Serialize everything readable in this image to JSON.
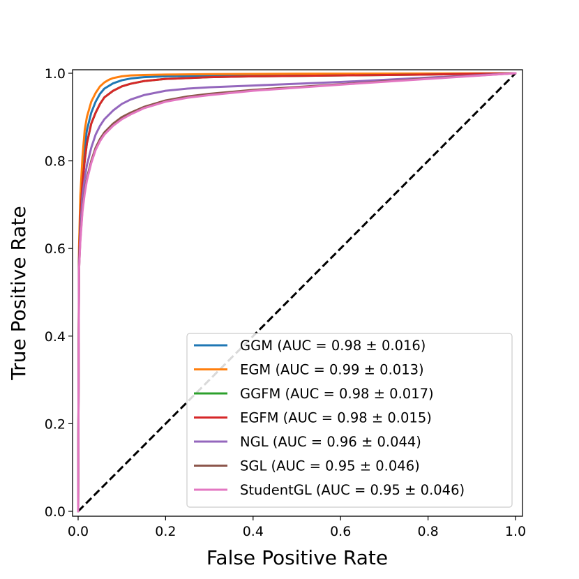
{
  "chart_data": {
    "type": "line",
    "title": "",
    "xlabel": "False Positive Rate",
    "ylabel": "True Positive Rate",
    "xlim": [
      0.0,
      1.0
    ],
    "ylim": [
      0.0,
      1.0
    ],
    "xticks": [
      "0.0",
      "0.2",
      "0.4",
      "0.6",
      "0.8",
      "1.0"
    ],
    "yticks": [
      "0.0",
      "0.2",
      "0.4",
      "0.6",
      "0.8",
      "1.0"
    ],
    "grid": false,
    "legend_position": "lower-right",
    "diagonal": {
      "style": "dashed",
      "color": "#000000",
      "x": [
        0,
        1
      ],
      "y": [
        0,
        1
      ]
    },
    "series": [
      {
        "name": "GGM",
        "label": "GGM (AUC = 0.98 ± 0.016)",
        "color": "#1f77b4",
        "x": [
          0,
          0.002,
          0.005,
          0.01,
          0.015,
          0.02,
          0.03,
          0.04,
          0.05,
          0.06,
          0.08,
          0.1,
          0.12,
          0.15,
          0.2,
          0.3,
          0.5,
          0.7,
          1.0
        ],
        "y": [
          0,
          0.58,
          0.68,
          0.77,
          0.83,
          0.87,
          0.91,
          0.935,
          0.953,
          0.965,
          0.977,
          0.984,
          0.988,
          0.991,
          0.993,
          0.995,
          0.997,
          0.998,
          1.0
        ]
      },
      {
        "name": "EGM",
        "label": "EGM (AUC = 0.99 ± 0.013)",
        "color": "#ff7f0e",
        "x": [
          0,
          0.002,
          0.005,
          0.01,
          0.015,
          0.02,
          0.03,
          0.04,
          0.05,
          0.06,
          0.07,
          0.08,
          0.1,
          0.12,
          0.15,
          0.2,
          0.3,
          0.5,
          1.0
        ],
        "y": [
          0,
          0.6,
          0.72,
          0.81,
          0.87,
          0.9,
          0.935,
          0.955,
          0.97,
          0.979,
          0.985,
          0.989,
          0.993,
          0.995,
          0.996,
          0.997,
          0.998,
          0.999,
          1.0
        ]
      },
      {
        "name": "GGFM",
        "label": "GGFM (AUC = 0.98 ± 0.017)",
        "color": "#2ca02c",
        "x": [
          0,
          0.002,
          0.005,
          0.01,
          0.015,
          0.02,
          0.03,
          0.04,
          0.05,
          0.06,
          0.08,
          0.1,
          0.12,
          0.15,
          0.2,
          0.3,
          0.4,
          0.6,
          0.8,
          1.0
        ],
        "y": [
          0,
          0.57,
          0.67,
          0.75,
          0.8,
          0.84,
          0.885,
          0.91,
          0.93,
          0.945,
          0.96,
          0.97,
          0.976,
          0.982,
          0.987,
          0.991,
          0.993,
          0.995,
          0.997,
          1.0
        ]
      },
      {
        "name": "EGFM",
        "label": "EGFM (AUC = 0.98 ± 0.015)",
        "color": "#d62728",
        "x": [
          0,
          0.002,
          0.005,
          0.01,
          0.015,
          0.02,
          0.03,
          0.04,
          0.05,
          0.06,
          0.08,
          0.1,
          0.12,
          0.15,
          0.2,
          0.3,
          0.4,
          0.6,
          0.8,
          1.0
        ],
        "y": [
          0,
          0.57,
          0.67,
          0.75,
          0.8,
          0.84,
          0.885,
          0.91,
          0.93,
          0.945,
          0.96,
          0.97,
          0.976,
          0.982,
          0.987,
          0.991,
          0.993,
          0.995,
          0.997,
          1.0
        ]
      },
      {
        "name": "NGL",
        "label": "NGL (AUC = 0.96 ± 0.044)",
        "color": "#9467bd",
        "x": [
          0,
          0.002,
          0.005,
          0.01,
          0.015,
          0.02,
          0.03,
          0.04,
          0.05,
          0.06,
          0.08,
          0.1,
          0.12,
          0.15,
          0.2,
          0.25,
          0.3,
          0.4,
          0.6,
          0.8,
          1.0
        ],
        "y": [
          0,
          0.56,
          0.64,
          0.72,
          0.76,
          0.79,
          0.83,
          0.86,
          0.88,
          0.895,
          0.915,
          0.93,
          0.94,
          0.95,
          0.96,
          0.965,
          0.968,
          0.972,
          0.98,
          0.99,
          1.0
        ]
      },
      {
        "name": "SGL",
        "label": "SGL (AUC = 0.95 ± 0.046)",
        "color": "#8c564b",
        "x": [
          0,
          0.002,
          0.005,
          0.01,
          0.015,
          0.02,
          0.03,
          0.04,
          0.05,
          0.06,
          0.08,
          0.1,
          0.12,
          0.15,
          0.2,
          0.25,
          0.3,
          0.4,
          0.6,
          0.8,
          1.0
        ],
        "y": [
          0,
          0.55,
          0.62,
          0.69,
          0.73,
          0.76,
          0.8,
          0.83,
          0.85,
          0.865,
          0.885,
          0.9,
          0.91,
          0.923,
          0.938,
          0.947,
          0.953,
          0.962,
          0.975,
          0.988,
          1.0
        ]
      },
      {
        "name": "StudentGL",
        "label": "StudentGL (AUC = 0.95 ± 0.046)",
        "color": "#e377c2",
        "x": [
          0,
          0.002,
          0.005,
          0.01,
          0.015,
          0.02,
          0.03,
          0.04,
          0.05,
          0.06,
          0.08,
          0.1,
          0.12,
          0.15,
          0.2,
          0.25,
          0.3,
          0.4,
          0.6,
          0.8,
          1.0
        ],
        "y": [
          0,
          0.55,
          0.615,
          0.685,
          0.725,
          0.755,
          0.795,
          0.825,
          0.845,
          0.86,
          0.88,
          0.895,
          0.906,
          0.92,
          0.935,
          0.944,
          0.95,
          0.96,
          0.974,
          0.987,
          1.0
        ]
      }
    ]
  }
}
